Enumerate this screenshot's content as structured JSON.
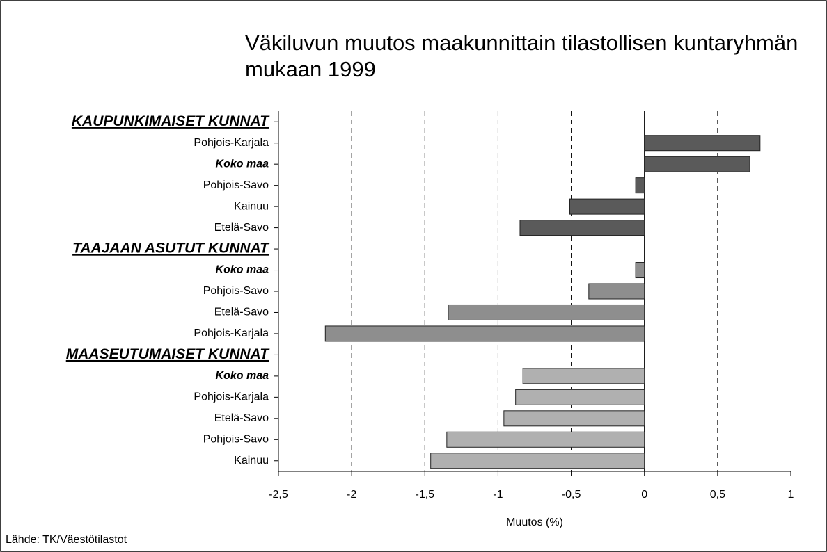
{
  "chart_data": {
    "type": "bar",
    "orientation": "horizontal",
    "title": "Väkiluvun muutos maakunnittain tilastollisen kuntaryhmän mukaan 1999",
    "xlabel": "Muutos (%)",
    "source": "Lähde: TK/Väestötilastot",
    "highlight": "Koko maa",
    "groups": [
      {
        "name": "KAUPUNKIMAISET KUNNAT",
        "color": "#5a5a5a",
        "categories": [
          "Pohjois-Karjala",
          "Koko maa",
          "Pohjois-Savo",
          "Kainuu",
          "Etelä-Savo"
        ],
        "values": [
          0.79,
          0.72,
          -0.06,
          -0.51,
          -0.85
        ]
      },
      {
        "name": "TAAJAAN ASUTUT KUNNAT",
        "color": "#8e8e8e",
        "categories": [
          "Koko maa",
          "Pohjois-Savo",
          "Etelä-Savo",
          "Pohjois-Karjala"
        ],
        "values": [
          -0.06,
          -0.38,
          -1.34,
          -2.18
        ]
      },
      {
        "name": "MAASEUTUMAISET KUNNAT",
        "color": "#b0b0b0",
        "categories": [
          "Koko maa",
          "Pohjois-Karjala",
          "Etelä-Savo",
          "Pohjois-Savo",
          "Kainuu"
        ],
        "values": [
          -0.83,
          -0.88,
          -0.96,
          -1.35,
          -1.46
        ]
      }
    ],
    "xlim": [
      -2.5,
      1
    ],
    "xticks": [
      {
        "value": -2.5,
        "label": "-2,5"
      },
      -2,
      {
        "value": -1.5,
        "label": "-1,5"
      },
      -1,
      {
        "value": -0.5,
        "label": "-0,5"
      },
      0,
      {
        "value": 0.5,
        "label": "0,5"
      },
      1
    ],
    "grid": true
  }
}
